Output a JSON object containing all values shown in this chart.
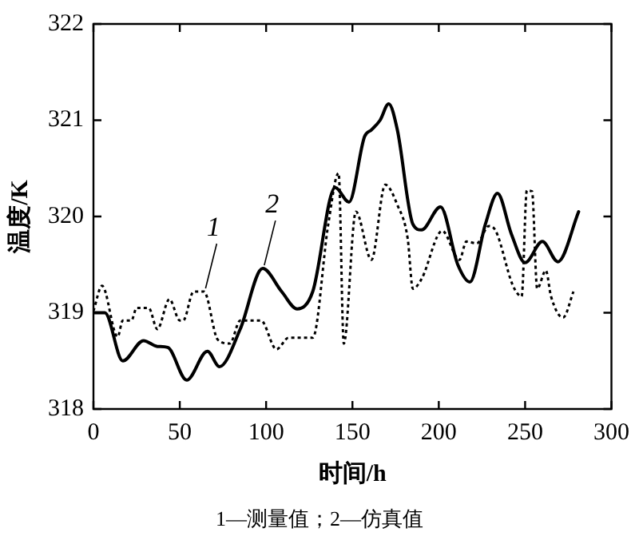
{
  "chart_data": {
    "type": "line",
    "xlabel": "时间/h",
    "ylabel": "温度/K",
    "xlim": [
      0,
      300
    ],
    "xticks": [
      0,
      50,
      100,
      150,
      200,
      250,
      300
    ],
    "ylim": [
      318,
      322
    ],
    "yticks": [
      318,
      319,
      320,
      321,
      322
    ],
    "grid": false,
    "legend": false,
    "marker": "none",
    "annotations": [
      {
        "text": "1",
        "x": 64,
        "y": 319.22
      },
      {
        "text": "2",
        "x": 98,
        "y": 319.46
      },
      "1—测量值；2—仿真值"
    ],
    "series": [
      {
        "color": "#000000",
        "line_style": "dotted",
        "x": [
          0,
          5,
          14,
          17,
          22,
          25,
          32,
          37,
          44,
          50,
          52,
          58,
          64,
          72,
          79,
          85,
          97,
          106,
          113,
          127,
          136,
          142,
          145,
          152,
          161,
          169,
          176,
          182,
          185,
          190,
          202,
          212,
          216,
          222,
          229,
          233,
          243,
          248,
          251,
          254,
          257,
          262,
          265,
          272,
          278
        ],
        "values": [
          319.02,
          319.28,
          318.75,
          318.92,
          318.92,
          319.05,
          319.05,
          318.83,
          319.14,
          318.92,
          318.92,
          319.22,
          319.22,
          318.72,
          318.68,
          318.92,
          318.92,
          318.62,
          318.74,
          318.74,
          319.92,
          320.45,
          318.68,
          320.05,
          319.55,
          320.33,
          320.12,
          319.77,
          319.25,
          319.35,
          319.85,
          319.55,
          319.74,
          319.72,
          319.9,
          319.85,
          319.28,
          319.17,
          320.27,
          320.26,
          319.25,
          319.44,
          319.17,
          318.95,
          319.22
        ]
      },
      {
        "color": "#000000",
        "line_style": "solid",
        "x": [
          0,
          6.6,
          17,
          29,
          37,
          43,
          54,
          66,
          73,
          85,
          98,
          109,
          118,
          127,
          140,
          148,
          157,
          161,
          166,
          171,
          176,
          185,
          190,
          201,
          211,
          218,
          227,
          234,
          242,
          250,
          260,
          269,
          281
        ],
        "values": [
          319.0,
          319.0,
          318.5,
          318.71,
          318.65,
          318.64,
          318.3,
          318.6,
          318.44,
          318.83,
          319.46,
          319.22,
          319.04,
          319.22,
          320.3,
          320.15,
          320.83,
          320.9,
          321.0,
          321.17,
          320.9,
          319.92,
          319.86,
          320.1,
          319.5,
          319.32,
          319.92,
          320.24,
          319.82,
          319.52,
          319.74,
          319.53,
          320.05
        ]
      }
    ]
  }
}
